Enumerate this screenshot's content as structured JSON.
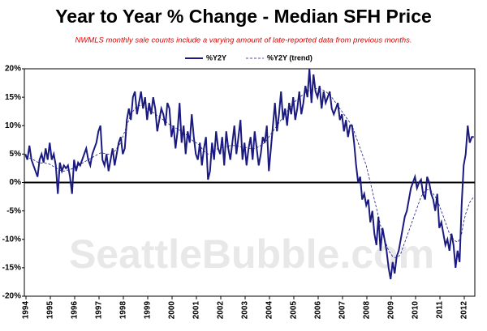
{
  "chart_data": {
    "type": "line",
    "title": "Year to Year % Change - Median SFH Price",
    "subtitle": "NWMLS monthly sale counts include a varying amount of late-reported  data from previous months.",
    "watermark": "SeattleBubble.com",
    "categories": [
      "1994",
      null,
      null,
      null,
      null,
      null,
      null,
      null,
      null,
      null,
      null,
      null,
      "1995",
      null,
      null,
      null,
      null,
      null,
      null,
      null,
      null,
      null,
      null,
      null,
      "1996",
      null,
      null,
      null,
      null,
      null,
      null,
      null,
      null,
      null,
      null,
      null,
      "1997",
      null,
      null,
      null,
      null,
      null,
      null,
      null,
      null,
      null,
      null,
      null,
      "1998",
      null,
      null,
      null,
      null,
      null,
      null,
      null,
      null,
      null,
      null,
      null,
      "1999",
      null,
      null,
      null,
      null,
      null,
      null,
      null,
      null,
      null,
      null,
      null,
      "2000",
      null,
      null,
      null,
      null,
      null,
      null,
      null,
      null,
      null,
      null,
      null,
      "2001",
      null,
      null,
      null,
      null,
      null,
      null,
      null,
      null,
      null,
      null,
      null,
      "2002",
      null,
      null,
      null,
      null,
      null,
      null,
      null,
      null,
      null,
      null,
      null,
      "2003",
      null,
      null,
      null,
      null,
      null,
      null,
      null,
      null,
      null,
      null,
      null,
      "2004",
      null,
      null,
      null,
      null,
      null,
      null,
      null,
      null,
      null,
      null,
      null,
      "2005",
      null,
      null,
      null,
      null,
      null,
      null,
      null,
      null,
      null,
      null,
      null,
      "2006",
      null,
      null,
      null,
      null,
      null,
      null,
      null,
      null,
      null,
      null,
      null,
      "2007",
      null,
      null,
      null,
      null,
      null,
      null,
      null,
      null,
      null,
      null,
      null,
      "2008",
      null,
      null,
      null,
      null,
      null,
      null,
      null,
      null,
      null,
      null,
      null,
      "2009",
      null,
      null,
      null,
      null,
      null,
      null,
      null,
      null,
      null,
      null,
      null,
      "2010",
      null,
      null,
      null,
      null,
      null,
      null,
      null,
      null,
      null,
      null,
      null,
      "2011",
      null,
      null,
      null,
      null,
      null,
      null,
      null,
      null,
      null,
      null,
      null,
      "2012",
      null,
      null,
      null,
      null,
      null
    ],
    "series": [
      {
        "name": "%Y2Y",
        "color": "#1a1a80",
        "dashed": false,
        "values": [
          5,
          4,
          6.5,
          4,
          3,
          2,
          1,
          4,
          5,
          3.5,
          6,
          4,
          7,
          4,
          5,
          3,
          -2,
          3.5,
          2,
          3,
          2.5,
          3,
          1,
          -2,
          4,
          2,
          3.5,
          3,
          4,
          5,
          6,
          4,
          3,
          5,
          6,
          7,
          9,
          10,
          4,
          3,
          5,
          2,
          4,
          6,
          3,
          5,
          7,
          8,
          5,
          6,
          11,
          13,
          11,
          15,
          16,
          12,
          14,
          16,
          13,
          15,
          11,
          14,
          12,
          15,
          13,
          9,
          11,
          13,
          12,
          10,
          14,
          13,
          8,
          10,
          6,
          9,
          14,
          7,
          10,
          5,
          9,
          7,
          12,
          8,
          5,
          4,
          7,
          3,
          6,
          8,
          0.5,
          2,
          7,
          4,
          9,
          6,
          5,
          8,
          3,
          9,
          6,
          4,
          7,
          10,
          5,
          8,
          11,
          4,
          7,
          3,
          6,
          8,
          4,
          9,
          6,
          3,
          5,
          8,
          7,
          10,
          2,
          6,
          10,
          14,
          9,
          12,
          16,
          11,
          13,
          10,
          14,
          12,
          15,
          11,
          13,
          16,
          12,
          14,
          17,
          15,
          20,
          14,
          19,
          16,
          15,
          17,
          13,
          16,
          14,
          15,
          16,
          13,
          12,
          13,
          14,
          11,
          12,
          9,
          11,
          8,
          10,
          10,
          7,
          3,
          0,
          1,
          -3,
          -2,
          -4,
          -3,
          -7,
          -5,
          -9,
          -11,
          -6,
          -12,
          -8,
          -10,
          -12,
          -15,
          -17,
          -14,
          -16,
          -13,
          -12,
          -10,
          -8,
          -6,
          -5,
          -3,
          -1,
          0,
          1,
          -1,
          0,
          0.5,
          -2,
          -3,
          1,
          0,
          -2,
          -3,
          -5,
          -2,
          -8,
          -7,
          -9,
          -11,
          -10,
          -12,
          -9,
          -11,
          -15,
          -12,
          -14,
          -4,
          3,
          5,
          10,
          7,
          8,
          8
        ]
      },
      {
        "name": "%Y2Y (trend)",
        "color": "#1a1a80",
        "dashed": true,
        "values": [
          4.5,
          4.4,
          4.3,
          4.2,
          4,
          3.8,
          3.6,
          3.5,
          3.4,
          3.4,
          3.4,
          3.3,
          3.2,
          3,
          2.8,
          2.6,
          2.4,
          2.2,
          2,
          2,
          2.1,
          2.2,
          2.3,
          2.4,
          2.6,
          2.8,
          3,
          3.2,
          3.4,
          3.6,
          3.8,
          4,
          4.2,
          4.4,
          4.6,
          4.8,
          5,
          5.2,
          5.2,
          5.1,
          5,
          5,
          5,
          5.2,
          5.5,
          6,
          6.5,
          7,
          8,
          9,
          10,
          11,
          12,
          12.5,
          13,
          13.5,
          13.5,
          13.5,
          13.5,
          13.2,
          13,
          12.8,
          12.5,
          12.3,
          12,
          11.8,
          11.5,
          11.3,
          11,
          10.8,
          10.5,
          10.2,
          10,
          9.8,
          9.6,
          9.4,
          9.2,
          9,
          8.8,
          8.5,
          8.2,
          7.8,
          7.5,
          7.2,
          7,
          6.8,
          6.5,
          6,
          5.5,
          5.2,
          5,
          5,
          5.2,
          5.5,
          5.8,
          6,
          6,
          6.1,
          6.2,
          6.3,
          6.4,
          6.5,
          6.5,
          6.5,
          6.5,
          6.4,
          6.3,
          6.2,
          6.2,
          6.1,
          6,
          6,
          6,
          6,
          6.1,
          6.3,
          6.5,
          6.8,
          7,
          7.5,
          8,
          8.5,
          9,
          9.5,
          10,
          10.5,
          11,
          11.5,
          12,
          12.5,
          13,
          13.5,
          14,
          14.3,
          14.6,
          15,
          15.2,
          15.5,
          15.8,
          16,
          16.2,
          16.3,
          16.4,
          16.5,
          16.5,
          16.5,
          16.4,
          16.2,
          16,
          15.7,
          15.4,
          15,
          14.5,
          14,
          13.5,
          13,
          12.5,
          12,
          11.5,
          11,
          10.5,
          10,
          9,
          8,
          7,
          6,
          5,
          4,
          3,
          1.5,
          0,
          -1.5,
          -3,
          -4.5,
          -6,
          -7.5,
          -9,
          -10,
          -11,
          -12,
          -12.5,
          -13,
          -13.2,
          -13.2,
          -13,
          -12.5,
          -11.5,
          -10.5,
          -9.5,
          -8.5,
          -7.5,
          -6.5,
          -5.5,
          -4.5,
          -3.5,
          -2.5,
          -2,
          -1.5,
          -1.3,
          -1.3,
          -1.5,
          -2,
          -2.5,
          -3.2,
          -4,
          -5,
          -6,
          -7,
          -8,
          -9,
          -9.5,
          -10,
          -10.3,
          -10.5,
          -10,
          -9,
          -7,
          -5.5,
          -4.5,
          -3.5,
          -3,
          -2.5
        ]
      }
    ],
    "ylim": [
      -20,
      20
    ],
    "yticks": [
      {
        "value": -20,
        "label": "-20%"
      },
      {
        "value": -15,
        "label": "-15%"
      },
      {
        "value": -10,
        "label": "-10%"
      },
      {
        "value": -5,
        "label": "-5%"
      },
      {
        "value": 0,
        "label": "0%"
      },
      {
        "value": 5,
        "label": "5%"
      },
      {
        "value": 10,
        "label": "10%"
      },
      {
        "value": 15,
        "label": "15%"
      },
      {
        "value": 20,
        "label": "20%"
      }
    ],
    "legend": "top"
  }
}
